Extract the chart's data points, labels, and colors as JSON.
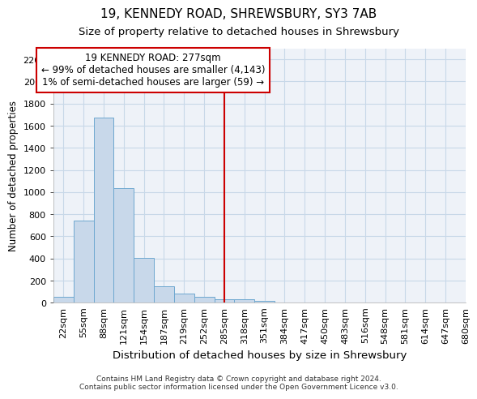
{
  "title": "19, KENNEDY ROAD, SHREWSBURY, SY3 7AB",
  "subtitle": "Size of property relative to detached houses in Shrewsbury",
  "xlabel": "Distribution of detached houses by size in Shrewsbury",
  "ylabel": "Number of detached properties",
  "footer_line1": "Contains HM Land Registry data © Crown copyright and database right 2024.",
  "footer_line2": "Contains public sector information licensed under the Open Government Licence v3.0.",
  "bin_labels": [
    "22sqm",
    "55sqm",
    "88sqm",
    "121sqm",
    "154sqm",
    "187sqm",
    "219sqm",
    "252sqm",
    "285sqm",
    "318sqm",
    "351sqm",
    "384sqm",
    "417sqm",
    "450sqm",
    "483sqm",
    "516sqm",
    "548sqm",
    "581sqm",
    "614sqm",
    "647sqm",
    "680sqm"
  ],
  "bar_values": [
    50,
    740,
    1670,
    1035,
    405,
    150,
    85,
    50,
    30,
    28,
    15,
    0,
    0,
    0,
    0,
    0,
    0,
    0,
    0,
    0
  ],
  "bar_color": "#c8d8ea",
  "bar_edge_color": "#6ea8d0",
  "vline_x": 8.0,
  "vline_color": "#cc0000",
  "annotation_line1": "19 KENNEDY ROAD: 277sqm",
  "annotation_line2": "← 99% of detached houses are smaller (4,143)",
  "annotation_line3": "1% of semi-detached houses are larger (59) →",
  "annotation_box_color": "#cc0000",
  "ylim": [
    0,
    2300
  ],
  "yticks": [
    0,
    200,
    400,
    600,
    800,
    1000,
    1200,
    1400,
    1600,
    1800,
    2000,
    2200
  ],
  "grid_color": "#c8d8e8",
  "bg_color": "#eef2f8",
  "title_fontsize": 11,
  "subtitle_fontsize": 9.5,
  "xlabel_fontsize": 9.5,
  "ylabel_fontsize": 8.5,
  "tick_fontsize": 8,
  "annotation_fontsize": 8.5,
  "footer_fontsize": 6.5
}
